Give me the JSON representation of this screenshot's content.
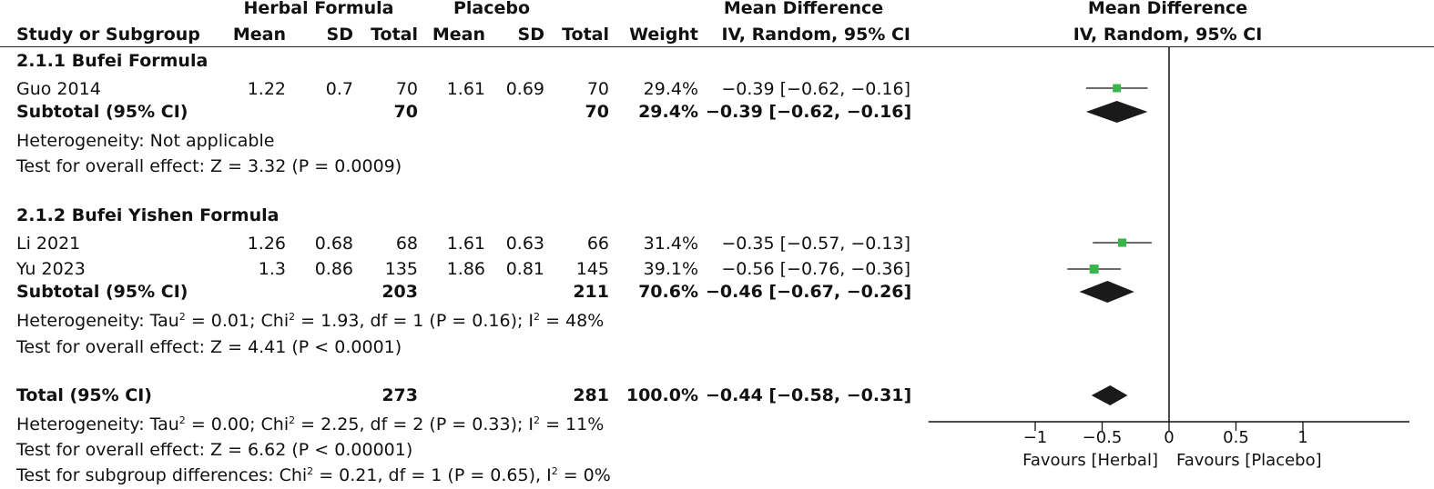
{
  "header": {
    "group1": "Herbal Formula",
    "group2": "Placebo",
    "effect_title": "Mean Difference",
    "plot_title": "Mean Difference",
    "study_col": "Study or Subgroup",
    "mean": "Mean",
    "sd": "SD",
    "total": "Total",
    "weight": "Weight",
    "effect_method": "IV, Random, 95% CI",
    "plot_method": "IV, Random, 95% CI"
  },
  "subgroups": [
    {
      "title": "2.1.1 Bufei Formula",
      "studies": [
        {
          "name": "Guo 2014",
          "mean1": "1.22",
          "sd1": "0.7",
          "n1": "70",
          "mean2": "1.61",
          "sd2": "0.69",
          "n2": "70",
          "weight": "29.4%",
          "ci_text": "−0.39 [−0.62, −0.16]"
        }
      ],
      "subtotal": {
        "label": "Subtotal (95% CI)",
        "n1": "70",
        "n2": "70",
        "weight": "29.4%",
        "ci_text": "−0.39 [−0.62, −0.16]"
      },
      "heterogeneity": "Heterogeneity: Not applicable",
      "overall": "Test for overall effect: Z = 3.32 (P = 0.0009)"
    },
    {
      "title": "2.1.2 Bufei Yishen Formula",
      "studies": [
        {
          "name": "Li 2021",
          "mean1": "1.26",
          "sd1": "0.68",
          "n1": "68",
          "mean2": "1.61",
          "sd2": "0.63",
          "n2": "66",
          "weight": "31.4%",
          "ci_text": "−0.35 [−0.57, −0.13]"
        },
        {
          "name": "Yu 2023",
          "mean1": "1.3",
          "sd1": "0.86",
          "n1": "135",
          "mean2": "1.86",
          "sd2": "0.81",
          "n2": "145",
          "weight": "39.1%",
          "ci_text": "−0.56 [−0.76, −0.36]"
        }
      ],
      "subtotal": {
        "label": "Subtotal (95% CI)",
        "n1": "203",
        "n2": "211",
        "weight": "70.6%",
        "ci_text": "−0.46 [−0.67, −0.26]"
      },
      "het_pre": "Heterogeneity: Tau",
      "het_mid": " = 0.01; Chi",
      "het_post": " = 1.93, df = 1 (P = 0.16); I",
      "het_end": " = 48%",
      "overall": "Test for overall effect: Z = 4.41 (P < 0.0001)"
    }
  ],
  "total": {
    "label": "Total (95% CI)",
    "n1": "273",
    "n2": "281",
    "weight": "100.0%",
    "ci_text": "−0.44 [−0.58, −0.31]",
    "het_pre": "Heterogeneity: Tau",
    "het_mid": " = 0.00; Chi",
    "het_post": " = 2.25, df = 2 (P = 0.33); I",
    "het_end": " = 11%",
    "overall": "Test for overall effect: Z = 6.62 (P < 0.00001)",
    "sub_pre": "Test for subgroup differences: Chi",
    "sub_post": " = 0.21, df = 1 (P = 0.65), I",
    "sub_end": " = 0%"
  },
  "superscript": "2",
  "chart_data": {
    "type": "forest",
    "xlim": [
      -1.05,
      1.8
    ],
    "ticks": [
      -1,
      -0.5,
      0,
      0.5,
      1
    ],
    "tick_labels": [
      "−1",
      "−0.5",
      "0",
      "0.5",
      "1"
    ],
    "favours_left": "Favours [Herbal]",
    "favours_right": "Favours [Placebo]",
    "studies": [
      {
        "name": "Guo 2014",
        "md": -0.39,
        "lo": -0.62,
        "hi": -0.16,
        "weight": 29.4
      },
      {
        "name": "Li 2021",
        "md": -0.35,
        "lo": -0.57,
        "hi": -0.13,
        "weight": 31.4
      },
      {
        "name": "Yu 2023",
        "md": -0.56,
        "lo": -0.76,
        "hi": -0.36,
        "weight": 39.1
      }
    ],
    "diamonds": [
      {
        "name": "Subtotal 2.1.1",
        "md": -0.39,
        "lo": -0.62,
        "hi": -0.16
      },
      {
        "name": "Subtotal 2.1.2",
        "md": -0.46,
        "lo": -0.67,
        "hi": -0.26
      },
      {
        "name": "Total",
        "md": -0.44,
        "lo": -0.58,
        "hi": -0.31
      }
    ],
    "marker_color": "#3ab54a",
    "diamond_color": "#1a1a1a"
  }
}
